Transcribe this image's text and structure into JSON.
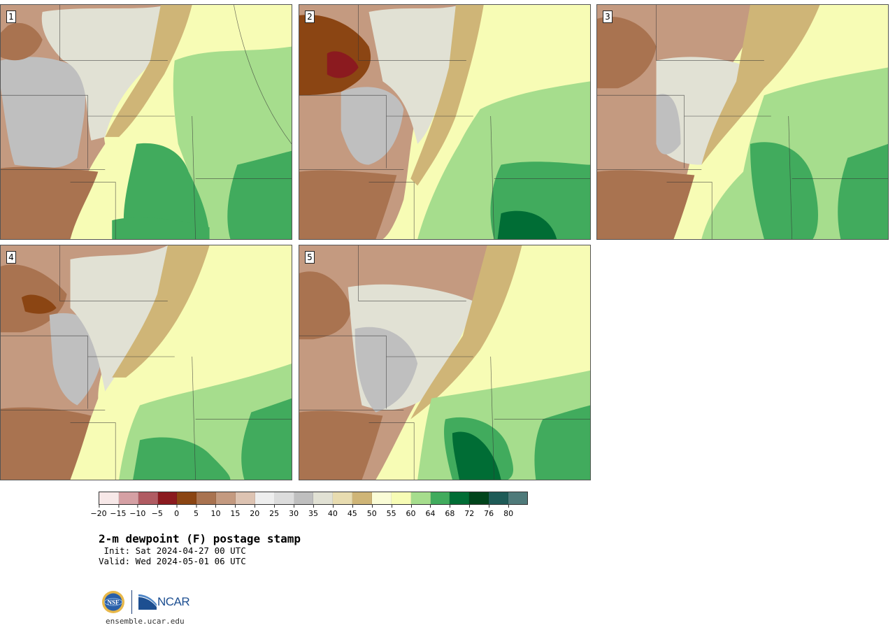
{
  "panels": [
    {
      "label": "1"
    },
    {
      "label": "2"
    },
    {
      "label": "3"
    },
    {
      "label": "4"
    },
    {
      "label": "5"
    }
  ],
  "colorbar": {
    "colors": [
      "#f7e8e8",
      "#d5a0a4",
      "#b05b62",
      "#8b1a1f",
      "#8b4513",
      "#a97350",
      "#c49a80",
      "#ddc3b2",
      "#eeeeee",
      "#dcdcdc",
      "#bfbfbf",
      "#e1e1d4",
      "#e8dcb0",
      "#cfb577",
      "#fafcd6",
      "#f7fcb5",
      "#a6dd8d",
      "#41ab5d",
      "#006d35",
      "#00441b",
      "#1e5b57",
      "#4f7a7a"
    ],
    "ticks": [
      "−20",
      "−15",
      "−10",
      "−5",
      "0",
      "5",
      "10",
      "15",
      "20",
      "25",
      "30",
      "35",
      "40",
      "45",
      "50",
      "55",
      "60",
      "64",
      "68",
      "72",
      "76",
      "80"
    ]
  },
  "title": "2-m dewpoint (F) postage stamp",
  "init": " Init: Sat 2024-04-27 00 UTC",
  "valid": "Valid: Wed 2024-05-01 06 UTC",
  "logos": {
    "ncar_text": "NCAR",
    "nsf_text": "NSF"
  },
  "site": "ensemble.ucar.edu"
}
